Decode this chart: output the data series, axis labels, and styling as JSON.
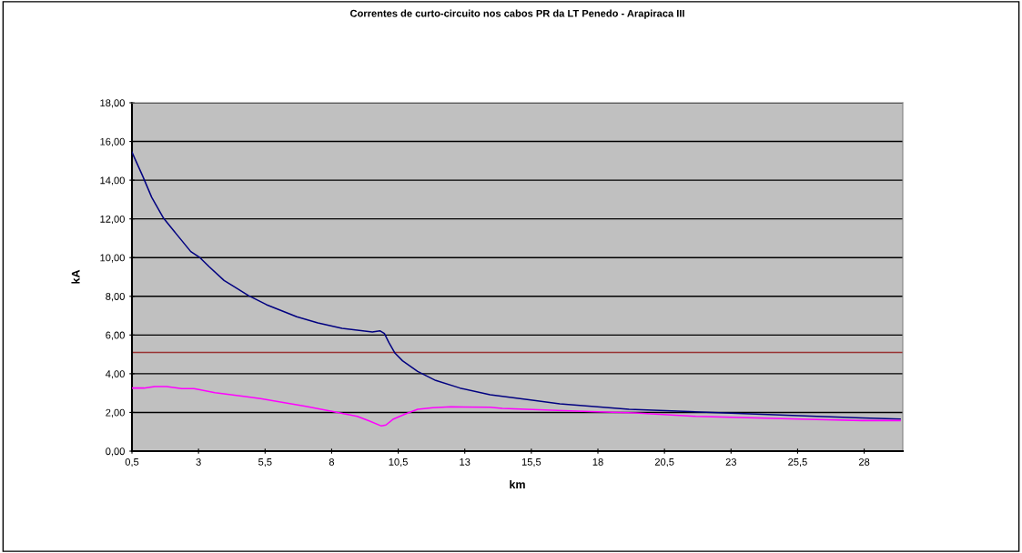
{
  "chart_data": {
    "type": "line",
    "title": "Correntes de curto-circuito nos cabos PR da LT Penedo - Arapiraca III",
    "xlabel": "km",
    "ylabel": "kA",
    "series": [
      {
        "color": "#000080",
        "x": [
          0.5,
          0.9,
          1.24,
          1.69,
          2.15,
          2.71,
          3.05,
          3.4,
          3.96,
          4.87,
          5.55,
          6.69,
          7.48,
          8.39,
          9.53,
          9.81,
          9.98,
          10.15,
          10.38,
          10.66,
          11.23,
          11.91,
          12.82,
          13.95,
          15.54,
          16.57,
          19.17,
          21.45,
          23.94,
          26.22,
          27.92,
          29.35
        ],
        "values": [
          15.45,
          14.22,
          13.12,
          12.03,
          11.25,
          10.31,
          10.0,
          9.53,
          8.82,
          8.04,
          7.57,
          6.94,
          6.63,
          6.34,
          6.16,
          6.22,
          6.08,
          5.61,
          5.06,
          4.67,
          4.12,
          3.65,
          3.26,
          2.91,
          2.63,
          2.44,
          2.16,
          2.04,
          1.91,
          1.8,
          1.72,
          1.66
        ]
      },
      {
        "color": "#ff00ff",
        "x": [
          0.5,
          0.95,
          1.35,
          1.8,
          2.37,
          2.83,
          3.62,
          4.76,
          5.33,
          6.23,
          7.03,
          8.05,
          8.96,
          9.41,
          9.87,
          10.04,
          10.32,
          10.78,
          11.23,
          11.8,
          12.48,
          13.95,
          14.41,
          16.0,
          17.7,
          19.4,
          21.67,
          23.94,
          25.87,
          27.92,
          29.35
        ],
        "values": [
          3.26,
          3.26,
          3.34,
          3.34,
          3.23,
          3.23,
          3.02,
          2.82,
          2.71,
          2.5,
          2.32,
          2.04,
          1.8,
          1.56,
          1.3,
          1.35,
          1.66,
          1.93,
          2.16,
          2.24,
          2.29,
          2.27,
          2.21,
          2.13,
          2.04,
          1.97,
          1.8,
          1.72,
          1.64,
          1.58,
          1.58
        ]
      }
    ],
    "ref_lines": [
      {
        "axis": "y",
        "value": 5.1,
        "color": "#993333"
      }
    ],
    "xlim": [
      0.5,
      29.45
    ],
    "xticks": [
      {
        "value": 0.5,
        "label": "0,5"
      },
      3,
      {
        "value": 5.5,
        "label": "5,5"
      },
      8,
      {
        "value": 10.5,
        "label": "10,5"
      },
      13,
      {
        "value": 15.5,
        "label": "15,5"
      },
      18,
      {
        "value": 20.5,
        "label": "20,5"
      },
      23,
      {
        "value": 25.5,
        "label": "25,5"
      },
      28
    ],
    "ylim": [
      0,
      18
    ],
    "yticks": [
      {
        "value": 0,
        "label": "0,00"
      },
      {
        "value": 2,
        "label": "2,00"
      },
      {
        "value": 4,
        "label": "4,00"
      },
      {
        "value": 6,
        "label": "6,00"
      },
      {
        "value": 8,
        "label": "8,00"
      },
      {
        "value": 10,
        "label": "10,00"
      },
      {
        "value": 12,
        "label": "12,00"
      },
      {
        "value": 14,
        "label": "14,00"
      },
      {
        "value": 16,
        "label": "16,00"
      },
      {
        "value": 18,
        "label": "18,00"
      }
    ],
    "grid": "y",
    "legend": false,
    "marker": "none",
    "line_style": "solid"
  }
}
